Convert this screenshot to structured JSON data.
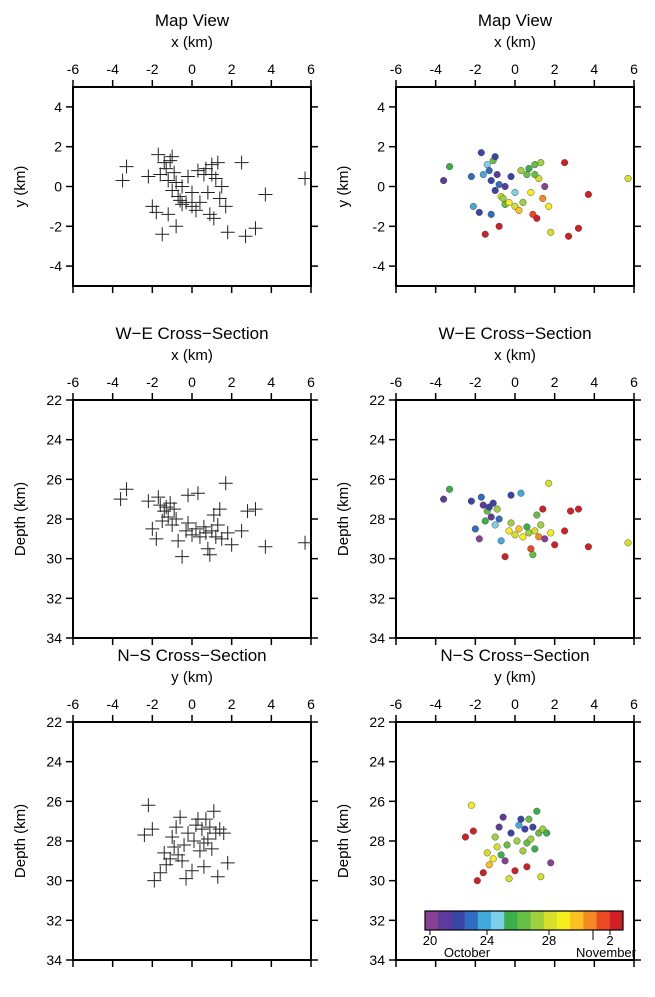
{
  "figure": {
    "colorbar": {
      "ticks": [
        "20",
        "24",
        "28",
        "2"
      ],
      "month_labels": [
        "October",
        "November"
      ],
      "colors": [
        "#8a3f96",
        "#5d3a9c",
        "#3b45a6",
        "#2f6cc2",
        "#43a8dc",
        "#7ccfe6",
        "#3bb04a",
        "#67bd45",
        "#9fd03f",
        "#d7df2a",
        "#f7ed1c",
        "#fbc021",
        "#f58a25",
        "#ec4a25",
        "#d21f26"
      ]
    }
  },
  "chart_data": [
    {
      "type": "scatter",
      "panel": "map-left",
      "title": "Map View",
      "xlabel": "x (km)",
      "ylabel": "y (km)",
      "xlim": [
        -6,
        6
      ],
      "ylim": [
        -5,
        5
      ],
      "y_inverted": false,
      "marker": "plus",
      "xticks": [
        -6,
        -4,
        -2,
        0,
        2,
        4,
        6
      ],
      "yticks": [
        -4,
        -2,
        0,
        2,
        4
      ],
      "points": [
        [
          -3.5,
          0.3
        ],
        [
          -3.3,
          1.0
        ],
        [
          -2.2,
          0.5
        ],
        [
          -2.0,
          -1.0
        ],
        [
          -1.8,
          -1.3
        ],
        [
          -1.7,
          1.6
        ],
        [
          -1.6,
          0.6
        ],
        [
          -1.4,
          1.2
        ],
        [
          -1.3,
          0.9
        ],
        [
          -1.2,
          0.3
        ],
        [
          -1.1,
          1.3
        ],
        [
          -1.0,
          -0.2
        ],
        [
          -0.9,
          0.7
        ],
        [
          -0.8,
          0.2
        ],
        [
          -0.7,
          -0.5
        ],
        [
          -0.6,
          -0.7
        ],
        [
          -0.5,
          -0.9
        ],
        [
          -0.3,
          -0.8
        ],
        [
          -0.2,
          0.5
        ],
        [
          0.0,
          -1.0
        ],
        [
          0.2,
          -1.2
        ],
        [
          0.4,
          -0.8
        ],
        [
          0.6,
          0.6
        ],
        [
          0.7,
          0.9
        ],
        [
          0.8,
          -0.3
        ],
        [
          0.9,
          -1.4
        ],
        [
          1.0,
          1.1
        ],
        [
          1.1,
          -1.6
        ],
        [
          1.2,
          0.4
        ],
        [
          1.3,
          1.2
        ],
        [
          1.4,
          -0.6
        ],
        [
          1.5,
          0.0
        ],
        [
          1.7,
          -1.0
        ],
        [
          1.8,
          -2.3
        ],
        [
          2.5,
          1.2
        ],
        [
          2.7,
          -2.5
        ],
        [
          3.2,
          -2.1
        ],
        [
          3.7,
          -0.4
        ],
        [
          5.7,
          0.4
        ],
        [
          -1.5,
          -2.4
        ],
        [
          -1.0,
          1.5
        ],
        [
          0.0,
          -0.3
        ],
        [
          -0.5,
          0.0
        ],
        [
          0.3,
          0.8
        ],
        [
          1.0,
          0.6
        ],
        [
          -1.2,
          -1.4
        ],
        [
          -0.8,
          -2.0
        ]
      ]
    },
    {
      "type": "scatter",
      "panel": "map-right",
      "title": "Map View",
      "xlabel": "x (km)",
      "ylabel": "y (km)",
      "xlim": [
        -6,
        6
      ],
      "ylim": [
        -5,
        5
      ],
      "y_inverted": false,
      "marker": "dot",
      "color_by": "date",
      "xticks": [
        -6,
        -4,
        -2,
        0,
        2,
        4,
        6
      ],
      "yticks": [
        -4,
        -2,
        0,
        2,
        4
      ],
      "points": [
        [
          -3.6,
          0.3,
          1
        ],
        [
          -3.3,
          1.0,
          6
        ],
        [
          -2.2,
          0.5,
          3
        ],
        [
          -2.1,
          -1.0,
          4
        ],
        [
          -1.8,
          -1.3,
          2
        ],
        [
          -1.7,
          1.7,
          2
        ],
        [
          -1.6,
          0.6,
          4
        ],
        [
          -1.4,
          1.1,
          5
        ],
        [
          -1.3,
          0.8,
          3
        ],
        [
          -1.2,
          0.3,
          2
        ],
        [
          -1.1,
          1.3,
          7
        ],
        [
          -1.0,
          -0.2,
          2
        ],
        [
          -0.9,
          0.6,
          1
        ],
        [
          -0.8,
          0.1,
          3
        ],
        [
          -0.7,
          -0.5,
          9
        ],
        [
          -0.6,
          -0.6,
          8
        ],
        [
          -0.5,
          -0.9,
          7
        ],
        [
          -0.3,
          -0.8,
          10
        ],
        [
          -0.2,
          0.5,
          2
        ],
        [
          0.0,
          -1.0,
          9
        ],
        [
          0.2,
          -1.2,
          11
        ],
        [
          0.4,
          -0.8,
          8
        ],
        [
          0.6,
          0.6,
          7
        ],
        [
          0.7,
          0.9,
          6
        ],
        [
          0.8,
          -0.3,
          10
        ],
        [
          0.9,
          -1.4,
          13
        ],
        [
          1.0,
          1.1,
          7
        ],
        [
          1.1,
          -1.6,
          14
        ],
        [
          1.2,
          0.4,
          9
        ],
        [
          1.3,
          1.2,
          8
        ],
        [
          1.4,
          -0.6,
          12
        ],
        [
          1.5,
          0.0,
          0
        ],
        [
          1.7,
          -1.0,
          10
        ],
        [
          1.8,
          -2.3,
          9
        ],
        [
          2.5,
          1.2,
          14
        ],
        [
          2.7,
          -2.5,
          14
        ],
        [
          3.2,
          -2.1,
          14
        ],
        [
          3.7,
          -0.4,
          14
        ],
        [
          5.7,
          0.4,
          9
        ],
        [
          -1.5,
          -2.4,
          14
        ],
        [
          -1.0,
          1.5,
          2
        ],
        [
          0.0,
          -0.3,
          5
        ],
        [
          -0.5,
          0.0,
          1
        ],
        [
          0.3,
          0.8,
          8
        ],
        [
          1.0,
          0.6,
          7
        ],
        [
          -1.2,
          -1.4,
          3
        ],
        [
          -0.8,
          -2.0,
          14
        ]
      ]
    },
    {
      "type": "scatter",
      "panel": "we-left",
      "title": "W−E Cross−Section",
      "xlabel": "x (km)",
      "ylabel": "Depth (km)",
      "xlim": [
        -6,
        6
      ],
      "ylim": [
        22,
        34
      ],
      "y_inverted": true,
      "marker": "plus",
      "xticks": [
        -6,
        -4,
        -2,
        0,
        2,
        4,
        6
      ],
      "yticks": [
        22,
        24,
        26,
        28,
        30,
        32,
        34
      ],
      "points": [
        [
          -3.6,
          27.0
        ],
        [
          -3.3,
          26.5
        ],
        [
          -2.2,
          27.1
        ],
        [
          -2.0,
          28.5
        ],
        [
          -1.8,
          29.0
        ],
        [
          -1.7,
          26.9
        ],
        [
          -1.6,
          27.3
        ],
        [
          -1.4,
          27.6
        ],
        [
          -1.3,
          27.4
        ],
        [
          -1.2,
          27.9
        ],
        [
          -1.1,
          27.2
        ],
        [
          -1.0,
          28.3
        ],
        [
          -0.9,
          27.5
        ],
        [
          -0.8,
          28.0
        ],
        [
          -0.7,
          29.1
        ],
        [
          -0.5,
          29.9
        ],
        [
          -0.3,
          28.6
        ],
        [
          -0.2,
          28.2
        ],
        [
          0.0,
          28.8
        ],
        [
          0.2,
          28.5
        ],
        [
          0.4,
          28.9
        ],
        [
          0.6,
          28.4
        ],
        [
          0.7,
          28.7
        ],
        [
          0.8,
          29.5
        ],
        [
          0.9,
          29.8
        ],
        [
          1.0,
          28.6
        ],
        [
          1.1,
          27.8
        ],
        [
          1.2,
          28.9
        ],
        [
          1.3,
          28.3
        ],
        [
          1.4,
          27.5
        ],
        [
          1.5,
          29.0
        ],
        [
          1.7,
          26.2
        ],
        [
          1.8,
          28.7
        ],
        [
          2.0,
          29.3
        ],
        [
          2.5,
          28.6
        ],
        [
          2.8,
          27.6
        ],
        [
          3.2,
          27.5
        ],
        [
          3.7,
          29.4
        ],
        [
          5.7,
          29.2
        ],
        [
          -0.2,
          26.8
        ],
        [
          0.3,
          26.7
        ],
        [
          -1.5,
          28.1
        ]
      ]
    },
    {
      "type": "scatter",
      "panel": "we-right",
      "title": "W−E Cross−Section",
      "xlabel": "x (km)",
      "ylabel": "Depth (km)",
      "xlim": [
        -6,
        6
      ],
      "ylim": [
        22,
        34
      ],
      "y_inverted": true,
      "marker": "dot",
      "color_by": "date",
      "xticks": [
        -6,
        -4,
        -2,
        0,
        2,
        4,
        6
      ],
      "yticks": [
        22,
        24,
        26,
        28,
        30,
        32,
        34
      ],
      "points": [
        [
          -3.6,
          27.0,
          1
        ],
        [
          -3.3,
          26.5,
          6
        ],
        [
          -2.2,
          27.1,
          2
        ],
        [
          -2.0,
          28.5,
          3
        ],
        [
          -1.8,
          29.0,
          0
        ],
        [
          -1.7,
          26.9,
          3
        ],
        [
          -1.6,
          27.3,
          1
        ],
        [
          -1.4,
          27.6,
          7
        ],
        [
          -1.3,
          27.4,
          2
        ],
        [
          -1.2,
          27.9,
          1
        ],
        [
          -1.1,
          27.2,
          2
        ],
        [
          -1.0,
          28.3,
          5
        ],
        [
          -0.9,
          27.5,
          8
        ],
        [
          -0.8,
          28.0,
          3
        ],
        [
          -0.7,
          29.1,
          4
        ],
        [
          -0.5,
          29.9,
          14
        ],
        [
          -0.3,
          28.6,
          10
        ],
        [
          -0.2,
          28.2,
          8
        ],
        [
          0.0,
          28.8,
          9
        ],
        [
          0.2,
          28.5,
          11
        ],
        [
          0.4,
          28.9,
          10
        ],
        [
          0.6,
          28.4,
          6
        ],
        [
          0.7,
          28.7,
          8
        ],
        [
          0.8,
          29.5,
          13
        ],
        [
          0.9,
          29.8,
          7
        ],
        [
          1.0,
          28.6,
          9
        ],
        [
          1.1,
          27.8,
          7
        ],
        [
          1.2,
          28.9,
          12
        ],
        [
          1.3,
          28.3,
          8
        ],
        [
          1.4,
          27.5,
          14
        ],
        [
          1.5,
          29.0,
          0
        ],
        [
          1.7,
          26.2,
          9
        ],
        [
          1.8,
          28.7,
          10
        ],
        [
          2.0,
          29.3,
          14
        ],
        [
          2.5,
          28.6,
          14
        ],
        [
          2.8,
          27.6,
          14
        ],
        [
          3.2,
          27.5,
          14
        ],
        [
          3.7,
          29.4,
          14
        ],
        [
          5.7,
          29.2,
          9
        ],
        [
          -0.2,
          26.8,
          2
        ],
        [
          0.3,
          26.7,
          4
        ],
        [
          -1.5,
          28.1,
          6
        ]
      ]
    },
    {
      "type": "scatter",
      "panel": "ns-left",
      "title": "N−S Cross−Section",
      "xlabel": "y (km)",
      "ylabel": "Depth (km)",
      "xlim": [
        -6,
        6
      ],
      "ylim": [
        22,
        34
      ],
      "y_inverted": true,
      "marker": "plus",
      "xticks": [
        -6,
        -4,
        -2,
        0,
        2,
        4,
        6
      ],
      "yticks": [
        22,
        24,
        26,
        28,
        30,
        32,
        34
      ],
      "points": [
        [
          -2.4,
          27.7
        ],
        [
          -2.2,
          26.2
        ],
        [
          -2.0,
          27.4
        ],
        [
          -1.9,
          30.0
        ],
        [
          -1.6,
          29.6
        ],
        [
          -1.4,
          28.6
        ],
        [
          -1.3,
          29.2
        ],
        [
          -1.1,
          28.9
        ],
        [
          -1.0,
          27.8
        ],
        [
          -0.9,
          28.3
        ],
        [
          -0.8,
          27.3
        ],
        [
          -0.7,
          28.7
        ],
        [
          -0.6,
          26.8
        ],
        [
          -0.5,
          29.0
        ],
        [
          -0.4,
          28.2
        ],
        [
          -0.2,
          27.6
        ],
        [
          0.0,
          29.5
        ],
        [
          0.1,
          28.0
        ],
        [
          0.2,
          27.2
        ],
        [
          0.3,
          26.9
        ],
        [
          0.4,
          28.5
        ],
        [
          0.5,
          27.4
        ],
        [
          0.6,
          28.1
        ],
        [
          0.7,
          26.9
        ],
        [
          0.8,
          27.9
        ],
        [
          0.9,
          27.3
        ],
        [
          1.0,
          28.4
        ],
        [
          1.1,
          26.5
        ],
        [
          1.2,
          27.6
        ],
        [
          1.3,
          29.8
        ],
        [
          1.4,
          27.4
        ],
        [
          1.6,
          27.6
        ],
        [
          1.8,
          29.1
        ],
        [
          -0.3,
          29.9
        ],
        [
          0.6,
          29.3
        ]
      ]
    },
    {
      "type": "scatter",
      "panel": "ns-right",
      "title": "N−S Cross−Section",
      "xlabel": "y (km)",
      "ylabel": "Depth (km)",
      "xlim": [
        -6,
        6
      ],
      "ylim": [
        22,
        34
      ],
      "y_inverted": true,
      "marker": "dot",
      "color_by": "date",
      "xticks": [
        -6,
        -4,
        -2,
        0,
        2,
        4,
        6
      ],
      "yticks": [
        22,
        24,
        26,
        28,
        30,
        32,
        34
      ],
      "points": [
        [
          -2.5,
          27.8,
          14
        ],
        [
          -2.2,
          26.2,
          10
        ],
        [
          -2.1,
          27.5,
          14
        ],
        [
          -1.9,
          30.0,
          14
        ],
        [
          -1.6,
          29.6,
          14
        ],
        [
          -1.4,
          28.6,
          9
        ],
        [
          -1.3,
          29.2,
          11
        ],
        [
          -1.1,
          28.9,
          10
        ],
        [
          -1.0,
          27.8,
          8
        ],
        [
          -0.9,
          28.3,
          9
        ],
        [
          -0.8,
          27.3,
          1
        ],
        [
          -0.7,
          28.7,
          6
        ],
        [
          -0.6,
          26.8,
          1
        ],
        [
          -0.5,
          29.0,
          0
        ],
        [
          -0.4,
          28.2,
          7
        ],
        [
          -0.2,
          27.6,
          2
        ],
        [
          0.0,
          29.5,
          14
        ],
        [
          0.1,
          28.0,
          8
        ],
        [
          0.2,
          27.2,
          4
        ],
        [
          0.3,
          26.9,
          2
        ],
        [
          0.4,
          28.5,
          8
        ],
        [
          0.5,
          27.4,
          2
        ],
        [
          0.6,
          28.1,
          7
        ],
        [
          0.7,
          26.9,
          7
        ],
        [
          0.8,
          27.9,
          8
        ],
        [
          0.9,
          27.3,
          2
        ],
        [
          1.0,
          28.4,
          6
        ],
        [
          1.1,
          26.5,
          6
        ],
        [
          1.2,
          27.6,
          7
        ],
        [
          1.3,
          29.8,
          9
        ],
        [
          1.4,
          27.4,
          8
        ],
        [
          1.6,
          27.6,
          6
        ],
        [
          1.8,
          29.1,
          0
        ],
        [
          -0.3,
          29.9,
          9
        ],
        [
          0.6,
          29.3,
          14
        ]
      ]
    }
  ]
}
